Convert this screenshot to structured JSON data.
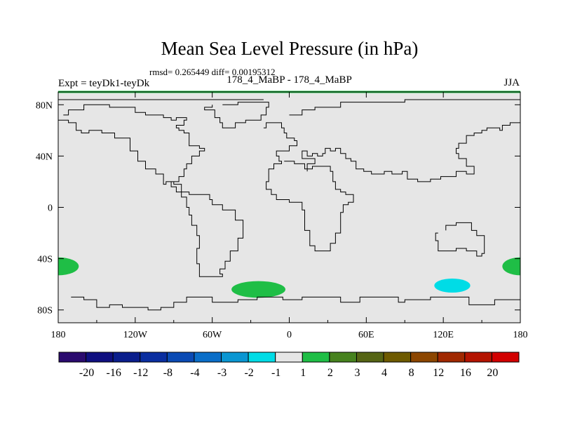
{
  "title": "Mean Sea Level Pressure (in hPa)",
  "stats_line": "rmsd= 0.265449 diff= 0.00195312",
  "comparison_label": "178_4_MaBP - 178_4_MaBP",
  "experiment_label": "Expt = teyDk1-teyDk",
  "season_label": "JJA",
  "chart_data": {
    "type": "heatmap",
    "variable": "Mean Sea Level Pressure difference",
    "units": "hPa",
    "projection": "cylindrical equidistant",
    "xlim": [
      -180,
      180
    ],
    "ylim": [
      -90,
      90
    ],
    "x_ticks": [
      {
        "value": -180,
        "label": "180"
      },
      {
        "value": -120,
        "label": "120W"
      },
      {
        "value": -60,
        "label": "60W"
      },
      {
        "value": 0,
        "label": "0"
      },
      {
        "value": 60,
        "label": "60E"
      },
      {
        "value": 120,
        "label": "120E"
      },
      {
        "value": 180,
        "label": "180"
      }
    ],
    "y_ticks": [
      {
        "value": 80,
        "label": "80N"
      },
      {
        "value": 40,
        "label": "40N"
      },
      {
        "value": 0,
        "label": "0"
      },
      {
        "value": -40,
        "label": "40S"
      },
      {
        "value": -80,
        "label": "80S"
      }
    ],
    "background_color": "#e6e6e6",
    "colorbar": {
      "boundary_labels": [
        "-20",
        "-16",
        "-12",
        "-8",
        "-4",
        "-3",
        "-2",
        "-1",
        "1",
        "2",
        "3",
        "4",
        "8",
        "12",
        "16",
        "20"
      ],
      "colors": [
        "#2a0a6e",
        "#0f0f80",
        "#0a1e8c",
        "#0a2ea0",
        "#0a4ab4",
        "#0a6ec8",
        "#0a96d2",
        "#00dce6",
        "#e6e6e6",
        "#1fbe46",
        "#46821e",
        "#556414",
        "#6e5a00",
        "#8c4600",
        "#a02800",
        "#b41400",
        "#d20000"
      ]
    },
    "anomaly_regions": [
      {
        "name": "south-atlantic-positive",
        "category": "1 to 2",
        "color": "#1fbe46",
        "center_lon": -24,
        "center_lat": -64,
        "lon_half_width": 21,
        "lat_half_height": 6.5
      },
      {
        "name": "dateline-positive-west",
        "category": "1 to 2",
        "color": "#1fbe46",
        "center_lon": -180,
        "center_lat": -46,
        "lon_half_width": 16,
        "lat_half_height": 7
      },
      {
        "name": "dateline-positive-east",
        "category": "1 to 2",
        "color": "#1fbe46",
        "center_lon": 180,
        "center_lat": -46,
        "lon_half_width": 14,
        "lat_half_height": 7
      },
      {
        "name": "southwest-pacific-negative",
        "category": "-2 to -1",
        "color": "#00dce6",
        "center_lon": 127,
        "center_lat": -61,
        "lon_half_width": 14,
        "lat_half_height": 5.5
      }
    ],
    "coastlines": [
      [
        [
          -170,
          -70
        ],
        [
          -160,
          -70
        ],
        [
          -160,
          -72
        ],
        [
          -150,
          -72
        ],
        [
          -150,
          -78
        ],
        [
          -140,
          -78
        ],
        [
          -140,
          -76
        ],
        [
          -130,
          -76
        ],
        [
          -130,
          -78
        ],
        [
          -115,
          -78
        ],
        [
          -115,
          -78
        ],
        [
          -110,
          -80
        ],
        [
          -100,
          -80
        ],
        [
          -100,
          -78
        ],
        [
          -90,
          -78
        ],
        [
          -90,
          -74
        ],
        [
          -80,
          -74
        ],
        [
          -80,
          -70
        ],
        [
          -60,
          -70
        ],
        [
          -60,
          -74
        ],
        [
          -40,
          -74
        ],
        [
          -40,
          -72
        ],
        [
          -25,
          -72
        ],
        [
          -25,
          -70
        ],
        [
          -5,
          -70
        ],
        [
          -5,
          -72
        ],
        [
          10,
          -72
        ],
        [
          10,
          -70
        ],
        [
          40,
          -70
        ],
        [
          40,
          -74
        ],
        [
          55,
          -74
        ],
        [
          55,
          -70
        ],
        [
          85,
          -70
        ],
        [
          85,
          -74
        ],
        [
          90,
          -74
        ],
        [
          90,
          -72
        ],
        [
          110,
          -72
        ],
        [
          110,
          -70
        ],
        [
          140,
          -70
        ],
        [
          140,
          -76
        ],
        [
          160,
          -76
        ],
        [
          160,
          -72
        ],
        [
          180,
          -72
        ]
      ],
      [
        [
          14,
          28
        ],
        [
          14,
          34
        ],
        [
          20,
          34
        ],
        [
          20,
          38
        ],
        [
          10,
          38
        ],
        [
          10,
          44
        ],
        [
          14,
          44
        ],
        [
          14,
          40
        ],
        [
          18,
          40
        ],
        [
          18,
          42
        ],
        [
          22,
          42
        ],
        [
          22,
          40
        ],
        [
          26,
          40
        ],
        [
          26,
          42
        ],
        [
          28,
          42
        ],
        [
          28,
          46
        ],
        [
          32,
          46
        ],
        [
          32,
          44
        ],
        [
          36,
          44
        ],
        [
          36,
          46
        ],
        [
          40,
          46
        ],
        [
          40,
          42
        ],
        [
          44,
          42
        ],
        [
          44,
          38
        ],
        [
          48,
          38
        ],
        [
          48,
          36
        ],
        [
          52,
          36
        ],
        [
          52,
          30
        ],
        [
          58,
          30
        ],
        [
          58,
          28
        ],
        [
          64,
          28
        ],
        [
          64,
          26
        ],
        [
          74,
          26
        ],
        [
          74,
          28
        ],
        [
          80,
          28
        ],
        [
          80,
          26
        ],
        [
          88,
          26
        ],
        [
          88,
          28
        ],
        [
          92,
          28
        ],
        [
          92,
          22
        ],
        [
          100,
          22
        ],
        [
          100,
          20
        ],
        [
          110,
          20
        ],
        [
          110,
          22
        ],
        [
          118,
          22
        ],
        [
          118,
          24
        ],
        [
          130,
          24
        ],
        [
          130,
          28
        ],
        [
          138,
          28
        ],
        [
          138,
          26
        ],
        [
          144,
          26
        ],
        [
          144,
          32
        ],
        [
          138,
          32
        ],
        [
          138,
          38
        ],
        [
          134,
          38
        ],
        [
          132,
          42
        ],
        [
          130,
          46
        ],
        [
          132,
          50
        ],
        [
          138,
          56
        ],
        [
          144,
          58
        ],
        [
          150,
          60
        ],
        [
          154,
          62
        ],
        [
          160,
          62
        ],
        [
          164,
          60
        ],
        [
          166,
          64
        ],
        [
          172,
          66
        ],
        [
          180,
          68
        ]
      ],
      [
        [
          -176,
          72
        ],
        [
          -172,
          76
        ],
        [
          -166,
          76
        ],
        [
          -160,
          80
        ],
        [
          -150,
          80
        ],
        [
          -140,
          78
        ],
        [
          -130,
          78
        ],
        [
          -120,
          74
        ],
        [
          -112,
          72
        ],
        [
          -104,
          72
        ],
        [
          -98,
          70
        ],
        [
          -92,
          68
        ],
        [
          -88,
          70
        ],
        [
          -80,
          68
        ],
        [
          -82,
          64
        ],
        [
          -88,
          62
        ],
        [
          -86,
          60
        ],
        [
          -82,
          58
        ],
        [
          -78,
          54
        ],
        [
          -78,
          48
        ],
        [
          -70,
          46
        ],
        [
          -66,
          44
        ],
        [
          -70,
          40
        ],
        [
          -76,
          34
        ],
        [
          -80,
          30
        ],
        [
          -82,
          24
        ],
        [
          -86,
          20
        ],
        [
          -92,
          16
        ],
        [
          -88,
          12
        ],
        [
          -84,
          8
        ],
        [
          -80,
          4
        ],
        [
          -80,
          0
        ],
        [
          -78,
          -6
        ],
        [
          -76,
          -14
        ],
        [
          -72,
          -22
        ],
        [
          -70,
          -32
        ],
        [
          -72,
          -44
        ],
        [
          -70,
          -54
        ],
        [
          -62,
          -54
        ],
        [
          -52,
          -52
        ],
        [
          -54,
          -48
        ],
        [
          -50,
          -42
        ],
        [
          -46,
          -34
        ],
        [
          -40,
          -24
        ],
        [
          -36,
          -10
        ],
        [
          -42,
          -2
        ],
        [
          -52,
          2
        ],
        [
          -60,
          6
        ],
        [
          -62,
          10
        ],
        [
          -72,
          10
        ],
        [
          -78,
          12
        ],
        [
          -84,
          18
        ],
        [
          -90,
          20
        ],
        [
          -96,
          18
        ],
        [
          -98,
          26
        ],
        [
          -104,
          30
        ],
        [
          -112,
          36
        ],
        [
          -118,
          44
        ],
        [
          -124,
          46
        ],
        [
          -124,
          54
        ],
        [
          -136,
          58
        ],
        [
          -146,
          60
        ],
        [
          -156,
          58
        ],
        [
          -162,
          60
        ],
        [
          -166,
          66
        ],
        [
          -172,
          68
        ],
        [
          -180,
          68
        ]
      ],
      [
        [
          -20,
          62
        ],
        [
          -18,
          66
        ],
        [
          -12,
          66
        ],
        [
          -6,
          62
        ],
        [
          -4,
          58
        ],
        [
          -2,
          54
        ],
        [
          4,
          52
        ],
        [
          6,
          48
        ],
        [
          0,
          44
        ],
        [
          -8,
          44
        ],
        [
          -10,
          40
        ],
        [
          -8,
          36
        ],
        [
          -6,
          34
        ],
        [
          -12,
          30
        ],
        [
          -16,
          20
        ],
        [
          -18,
          14
        ],
        [
          -14,
          10
        ],
        [
          -10,
          6
        ],
        [
          0,
          4
        ],
        [
          8,
          4
        ],
        [
          10,
          -2
        ],
        [
          12,
          -10
        ],
        [
          12,
          -18
        ],
        [
          16,
          -30
        ],
        [
          20,
          -34
        ],
        [
          26,
          -34
        ],
        [
          32,
          -28
        ],
        [
          36,
          -20
        ],
        [
          40,
          -14
        ],
        [
          40,
          -4
        ],
        [
          42,
          2
        ],
        [
          46,
          4
        ],
        [
          50,
          10
        ],
        [
          44,
          12
        ],
        [
          40,
          14
        ],
        [
          36,
          20
        ],
        [
          34,
          28
        ],
        [
          32,
          32
        ],
        [
          28,
          32
        ],
        [
          24,
          32
        ],
        [
          18,
          30
        ],
        [
          12,
          34
        ],
        [
          4,
          36
        ],
        [
          -4,
          36
        ]
      ],
      [
        [
          116,
          -20
        ],
        [
          114,
          -26
        ],
        [
          116,
          -34
        ],
        [
          124,
          -34
        ],
        [
          130,
          -32
        ],
        [
          138,
          -34
        ],
        [
          146,
          -38
        ],
        [
          150,
          -36
        ],
        [
          152,
          -28
        ],
        [
          152,
          -22
        ],
        [
          146,
          -18
        ],
        [
          142,
          -12
        ],
        [
          136,
          -12
        ],
        [
          130,
          -14
        ],
        [
          122,
          -18
        ]
      ],
      [
        [
          -52,
          80
        ],
        [
          -40,
          82
        ],
        [
          -24,
          82
        ],
        [
          -16,
          78
        ],
        [
          -18,
          72
        ],
        [
          -22,
          68
        ],
        [
          -34,
          66
        ],
        [
          -42,
          62
        ],
        [
          -48,
          62
        ],
        [
          -52,
          66
        ],
        [
          -54,
          70
        ],
        [
          -58,
          76
        ],
        [
          -66,
          78
        ],
        [
          -60,
          80
        ]
      ],
      [
        [
          0,
          72
        ],
        [
          10,
          76
        ],
        [
          20,
          78
        ],
        [
          40,
          82
        ],
        [
          60,
          82
        ],
        [
          90,
          84
        ],
        [
          120,
          84
        ],
        [
          150,
          84
        ],
        [
          180,
          84
        ]
      ],
      [
        [
          -180,
          84
        ],
        [
          -120,
          84
        ],
        [
          -60,
          84
        ],
        [
          -20,
          84
        ]
      ]
    ]
  }
}
